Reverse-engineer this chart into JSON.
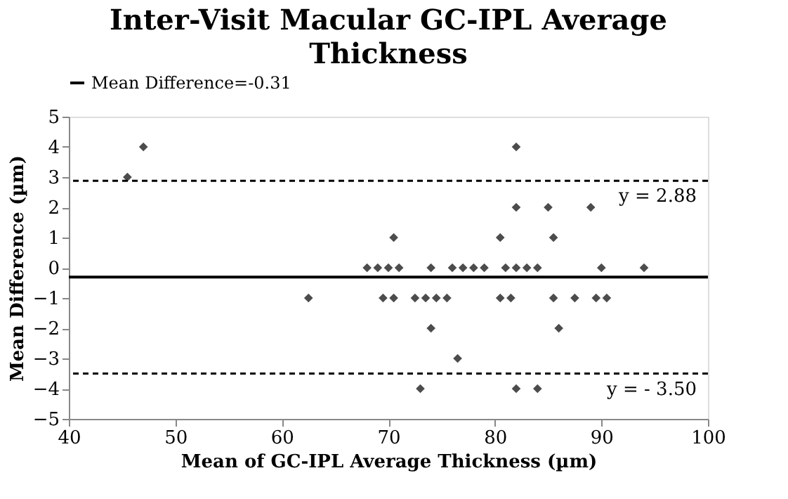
{
  "chart_data": {
    "type": "scatter",
    "title": "Inter-Visit Macular GC-IPL Average Thickness",
    "xlabel": "Mean of GC-IPL Average Thickness (µm)",
    "ylabel": "Mean Difference (µm)",
    "series": [
      {
        "marker": "diamond",
        "color": "#000000",
        "x": [
          45.5,
          47,
          68,
          69,
          70,
          71,
          74,
          76,
          77,
          78,
          79,
          81,
          82,
          83,
          84,
          90,
          94,
          70.5,
          80.5,
          85.5,
          82,
          85,
          89,
          82,
          62.5,
          69.5,
          70.5,
          72.5,
          73.5,
          74.5,
          75.5,
          80.5,
          81.5,
          85.5,
          87.5,
          89.5,
          90.5,
          74,
          86,
          76.5,
          73,
          82,
          84
        ],
        "values": [
          3,
          4,
          0,
          0,
          0,
          0,
          0,
          0,
          0,
          0,
          0,
          0,
          0,
          0,
          0,
          0,
          0,
          1,
          1,
          1,
          2,
          2,
          2,
          4,
          -1,
          -1,
          -1,
          -1,
          -1,
          -1,
          -1,
          -1,
          -1,
          -1,
          -1,
          -1,
          -1,
          -2,
          -2,
          -3,
          -4,
          -4,
          -4
        ]
      },
      {
        "type": "line",
        "name": "Mean Difference=-0.31",
        "color": "#000000",
        "x": [
          40,
          100
        ],
        "values": [
          -0.31,
          -0.31
        ]
      }
    ],
    "ref_lines": [
      {
        "axis": "y",
        "value": 2.88,
        "label": "y = 2.88",
        "color": "#000000",
        "line_style": "dashed"
      },
      {
        "axis": "y",
        "value": -3.5,
        "label": "y =  - 3.50",
        "color": "#000000",
        "line_style": "dashed"
      }
    ],
    "xlim": [
      40,
      100
    ],
    "xticks": [
      40,
      50,
      60,
      70,
      80,
      90,
      100
    ],
    "ylim": [
      -5,
      5
    ],
    "yticks": [
      -5,
      -4,
      -3,
      -2,
      -1,
      0,
      1,
      2,
      3,
      4,
      5
    ],
    "grid": false,
    "legend": "top",
    "line_style": "solid"
  }
}
